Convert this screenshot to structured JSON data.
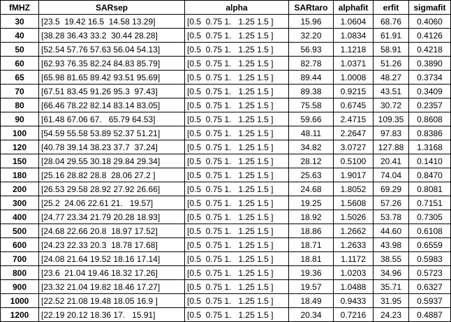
{
  "headers": [
    "fMHZ",
    "SARsep",
    "alpha",
    "SARtaro",
    "alphafit",
    "erfit",
    "sigmafit"
  ],
  "rows": [
    [
      "30",
      "[23.5  19.42 16.5  14.58 13.29]",
      "[0.5  0.75 1.   1.25 1.5 ]",
      "15.96",
      "1.0604",
      "68.76",
      "0.4060"
    ],
    [
      "40",
      "[38.28 36.43 33.2  30.44 28.28]",
      "[0.5  0.75 1.   1.25 1.5 ]",
      "32.20",
      "1.0834",
      "61.91",
      "0.4126"
    ],
    [
      "50",
      "[52.54 57.76 57.63 56.04 54.13]",
      "[0.5  0.75 1.   1.25 1.5 ]",
      "56.93",
      "1.1218",
      "58.91",
      "0.4218"
    ],
    [
      "60",
      "[62.93 76.35 82.24 84.83 85.79]",
      "[0.5  0.75 1.   1.25 1.5 ]",
      "82.78",
      "1.0371",
      "51.26",
      "0.3890"
    ],
    [
      "65",
      "[65.98 81.65 89.42 93.51 95.69]",
      "[0.5  0.75 1.   1.25 1.5 ]",
      "89.44",
      "1.0008",
      "48.27",
      "0.3734"
    ],
    [
      "70",
      "[67.51 83.45 91.26 95.3  97.43]",
      "[0.5  0.75 1.   1.25 1.5 ]",
      "89.38",
      "0.9215",
      "43.51",
      "0.3409"
    ],
    [
      "80",
      "[66.46 78.22 82.14 83.14 83.05]",
      "[0.5  0.75 1.   1.25 1.5 ]",
      "75.58",
      "0.6745",
      "30.72",
      "0.2357"
    ],
    [
      "90",
      "[61.48 67.06 67.   65.79 64.53]",
      "[0.5  0.75 1.   1.25 1.5 ]",
      "59.66",
      "2.4715",
      "109.35",
      "0.8608"
    ],
    [
      "100",
      "[54.59 55.58 53.89 52.37 51.21]",
      "[0.5  0.75 1.   1.25 1.5 ]",
      "48.11",
      "2.2647",
      "97.83",
      "0.8386"
    ],
    [
      "120",
      "[40.78 39.14 38.23 37.7  37.24]",
      "[0.5  0.75 1.   1.25 1.5 ]",
      "34.82",
      "3.0727",
      "127.88",
      "1.3168"
    ],
    [
      "150",
      "[28.04 29.55 30.18 29.84 29.34]",
      "[0.5  0.75 1.   1.25 1.5 ]",
      "28.12",
      "0.5100",
      "20.41",
      "0.1410"
    ],
    [
      "180",
      "[25.16 28.82 28.8  28.06 27.2 ]",
      "[0.5  0.75 1.   1.25 1.5 ]",
      "25.63",
      "1.9017",
      "74.04",
      "0.8470"
    ],
    [
      "200",
      "[26.53 29.58 28.92 27.92 26.66]",
      "[0.5  0.75 1.   1.25 1.5 ]",
      "24.68",
      "1.8052",
      "69.29",
      "0.8081"
    ],
    [
      "300",
      "[25.2  24.06 22.61 21.   19.57]",
      "[0.5  0.75 1.   1.25 1.5 ]",
      "19.25",
      "1.5608",
      "57.26",
      "0.7151"
    ],
    [
      "400",
      "[24.77 23.34 21.79 20.28 18.93]",
      "[0.5  0.75 1.   1.25 1.5 ]",
      "18.92",
      "1.5026",
      "53.78",
      "0.7305"
    ],
    [
      "500",
      "[24.68 22.66 20.8  18.97 17.52]",
      "[0.5  0.75 1.   1.25 1.5 ]",
      "18.86",
      "1.2662",
      "44.60",
      "0.6108"
    ],
    [
      "600",
      "[24.23 22.33 20.3  18.78 17.68]",
      "[0.5  0.75 1.   1.25 1.5 ]",
      "18.71",
      "1.2633",
      "43.98",
      "0.6559"
    ],
    [
      "700",
      "[24.08 21.64 19.52 18.16 17.14]",
      "[0.5  0.75 1.   1.25 1.5 ]",
      "18.81",
      "1.1172",
      "38.55",
      "0.5983"
    ],
    [
      "800",
      "[23.6  21.04 19.46 18.32 17.26]",
      "[0.5  0.75 1.   1.25 1.5 ]",
      "19.36",
      "1.0203",
      "34.96",
      "0.5723"
    ],
    [
      "900",
      "[23.32 21.04 19.82 18.46 17.27]",
      "[0.5  0.75 1.   1.25 1.5 ]",
      "19.57",
      "1.0488",
      "35.71",
      "0.6327"
    ],
    [
      "1000",
      "[22.52 21.08 19.48 18.05 16.9 ]",
      "[0.5  0.75 1.   1.25 1.5 ]",
      "18.49",
      "0.9433",
      "31.95",
      "0.5937"
    ],
    [
      "1200",
      "[22.19 20.12 18.36 17.   15.91]",
      "[0.5  0.75 1.   1.25 1.5 ]",
      "20.34",
      "0.7216",
      "24.23",
      "0.4887"
    ]
  ]
}
